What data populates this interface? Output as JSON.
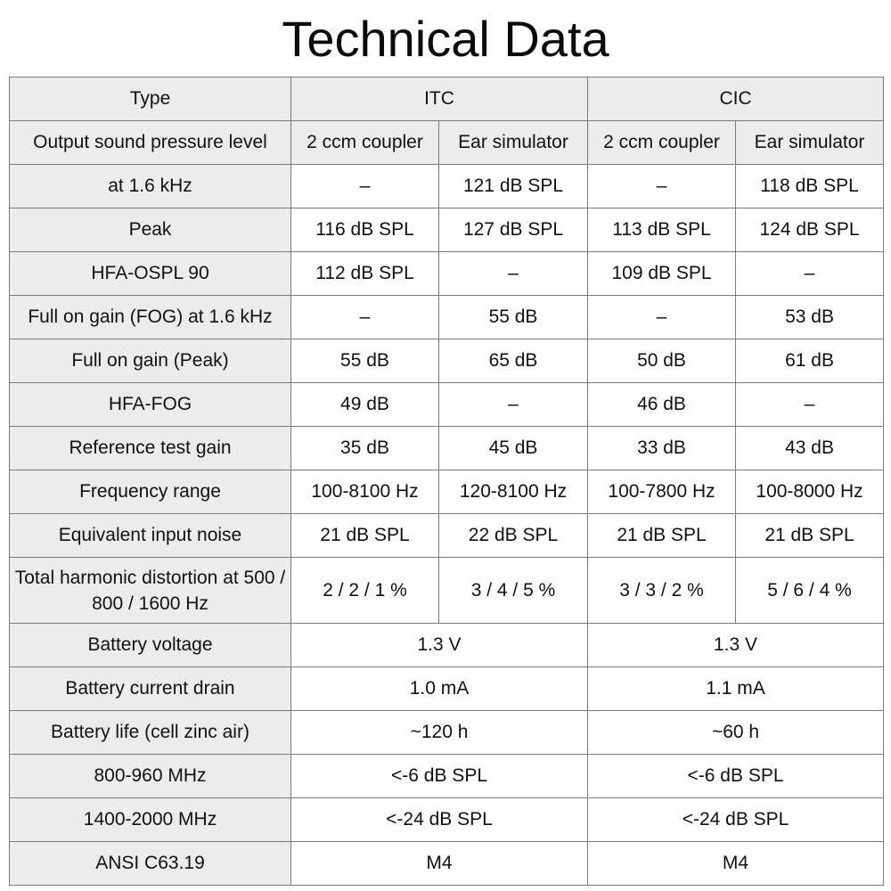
{
  "title": "Technical Data",
  "header": {
    "type": "Type",
    "itc": "ITC",
    "cic": "CIC"
  },
  "subheader": {
    "label": "Output sound pressure level",
    "cols": [
      "2 ccm coupler",
      "Ear simulator",
      "2 ccm coupler",
      "Ear simulator"
    ]
  },
  "rows": [
    {
      "label": "at 1.6 kHz",
      "cells": [
        "–",
        "121 dB SPL",
        "–",
        "118 dB SPL"
      ]
    },
    {
      "label": "Peak",
      "cells": [
        "116 dB SPL",
        "127 dB SPL",
        "113 dB SPL",
        "124 dB SPL"
      ]
    },
    {
      "label": "HFA-OSPL 90",
      "cells": [
        "112 dB SPL",
        "–",
        "109 dB SPL",
        "–"
      ]
    },
    {
      "label": "Full on gain (FOG) at 1.6 kHz",
      "cells": [
        "–",
        "55 dB",
        "–",
        "53 dB"
      ]
    },
    {
      "label": "Full on gain (Peak)",
      "cells": [
        "55 dB",
        "65 dB",
        "50 dB",
        "61 dB"
      ]
    },
    {
      "label": "HFA-FOG",
      "cells": [
        "49 dB",
        "–",
        "46 dB",
        "–"
      ]
    },
    {
      "label": "Reference test gain",
      "cells": [
        "35 dB",
        "45 dB",
        "33 dB",
        "43 dB"
      ]
    },
    {
      "label": "Frequency range",
      "cells": [
        "100-8100 Hz",
        "120-8100 Hz",
        "100-7800 Hz",
        "100-8000 Hz"
      ]
    },
    {
      "label": "Equivalent input noise",
      "cells": [
        "21 dB SPL",
        "22 dB SPL",
        "21 dB SPL",
        "21 dB SPL"
      ]
    },
    {
      "label": "Total harmonic distortion at 500 / 800 / 1600 Hz",
      "cells": [
        "2 / 2 / 1 %",
        "3 / 4 / 5 %",
        "3 / 3 / 2 %",
        "5 / 6 / 4 %"
      ]
    }
  ],
  "merged_rows": [
    {
      "label": "Battery voltage",
      "itc": "1.3 V",
      "cic": "1.3 V"
    },
    {
      "label": "Battery current drain",
      "itc": "1.0 mA",
      "cic": "1.1 mA"
    },
    {
      "label": "Battery life (cell zinc air)",
      "itc": "~120 h",
      "cic": "~60 h"
    },
    {
      "label": "800-960 MHz",
      "itc": "<-6 dB SPL",
      "cic": "<-6 dB SPL"
    },
    {
      "label": "1400-2000 MHz",
      "itc": "<-24 dB SPL",
      "cic": "<-24 dB SPL"
    },
    {
      "label": "ANSI C63.19",
      "itc": "M4",
      "cic": "M4"
    }
  ]
}
